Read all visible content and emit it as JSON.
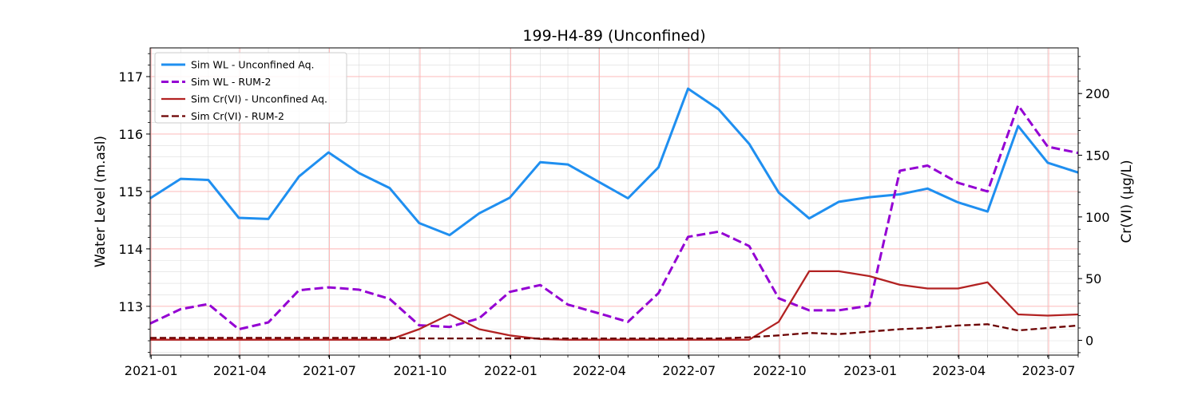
{
  "chart_data": {
    "type": "line",
    "title": "199-H4-89 (Unconfined)",
    "ylabel": "Water Level (m.asl)",
    "y2label": "Cr(VI) (µg/L)",
    "xlabel": "",
    "xlim": [
      "2020-12-31",
      "2023-07-31"
    ],
    "ylim": [
      112.15,
      117.5
    ],
    "y2lim": [
      -12,
      237
    ],
    "x_ticks": [
      "2021-01-01",
      "2021-04-01",
      "2021-07-01",
      "2021-10-01",
      "2022-01-01",
      "2022-04-01",
      "2022-07-01",
      "2022-10-01",
      "2023-01-01",
      "2023-04-01",
      "2023-07-01"
    ],
    "x_tick_labels": [
      "2021-01",
      "2021-04",
      "2021-07",
      "2021-10",
      "2022-01",
      "2022-04",
      "2022-07",
      "2022-10",
      "2023-01",
      "2023-04",
      "2023-07"
    ],
    "y_ticks": [
      113,
      114,
      115,
      116,
      117
    ],
    "y2_ticks": [
      0,
      50,
      100,
      150,
      200
    ],
    "grid": true,
    "legend_position": "top-left",
    "x": [
      "2020-12-31",
      "2021-01-31",
      "2021-02-28",
      "2021-03-31",
      "2021-04-30",
      "2021-05-31",
      "2021-06-30",
      "2021-07-31",
      "2021-08-31",
      "2021-09-30",
      "2021-10-31",
      "2021-11-30",
      "2021-12-31",
      "2022-01-31",
      "2022-02-28",
      "2022-03-31",
      "2022-04-30",
      "2022-05-31",
      "2022-06-30",
      "2022-07-31",
      "2022-08-31",
      "2022-09-30",
      "2022-10-31",
      "2022-11-30",
      "2022-12-31",
      "2023-01-31",
      "2023-02-28",
      "2023-03-31",
      "2023-04-30",
      "2023-05-31",
      "2023-06-30",
      "2023-07-31"
    ],
    "series": [
      {
        "name": "Sim WL - Unconfined Aq.",
        "axis": "left",
        "color": "#1f8ff0",
        "dash": "solid",
        "values": [
          114.88,
          115.22,
          115.2,
          114.54,
          114.52,
          115.26,
          115.68,
          115.32,
          115.06,
          114.45,
          114.24,
          114.62,
          114.89,
          115.51,
          115.47,
          115.17,
          114.88,
          115.42,
          116.79,
          116.43,
          115.83,
          114.98,
          114.53,
          114.82,
          114.9,
          114.95,
          115.05,
          114.81,
          114.65,
          116.14,
          115.5,
          115.33
        ]
      },
      {
        "name": "Sim WL - RUM-2",
        "axis": "left",
        "color": "#9400d3",
        "dash": "dashed",
        "values": [
          112.7,
          112.95,
          113.04,
          112.6,
          112.72,
          113.28,
          113.33,
          113.29,
          113.13,
          112.67,
          112.64,
          112.79,
          113.25,
          113.37,
          113.03,
          112.88,
          112.73,
          113.23,
          114.21,
          114.3,
          114.05,
          113.14,
          112.93,
          112.93,
          113.01,
          115.36,
          115.45,
          115.15,
          115.0,
          116.5,
          115.78,
          115.67
        ]
      },
      {
        "name": "Sim Cr(VI) - Unconfined Aq.",
        "axis": "right",
        "color": "#b22222",
        "dash": "solid",
        "values": [
          0.5,
          0.5,
          0.5,
          0.5,
          0.5,
          0.5,
          0.5,
          0.5,
          0.5,
          9,
          21,
          9,
          4,
          1,
          0.5,
          0.5,
          0.5,
          0.5,
          0.5,
          0.5,
          0.5,
          15,
          56,
          56,
          52,
          45,
          42,
          42,
          47,
          21,
          20,
          21
        ]
      },
      {
        "name": "Sim Cr(VI) - RUM-2",
        "axis": "right",
        "color": "#6b0000",
        "dash": "dashed",
        "values": [
          2,
          2,
          2,
          2,
          2,
          2,
          2,
          2,
          2,
          1.5,
          1.5,
          1.5,
          1.5,
          1.5,
          1.5,
          1.5,
          1.5,
          1.5,
          1.5,
          1.5,
          2.5,
          4,
          6,
          5,
          7,
          9,
          10,
          12,
          13,
          8,
          10,
          12
        ]
      }
    ]
  }
}
